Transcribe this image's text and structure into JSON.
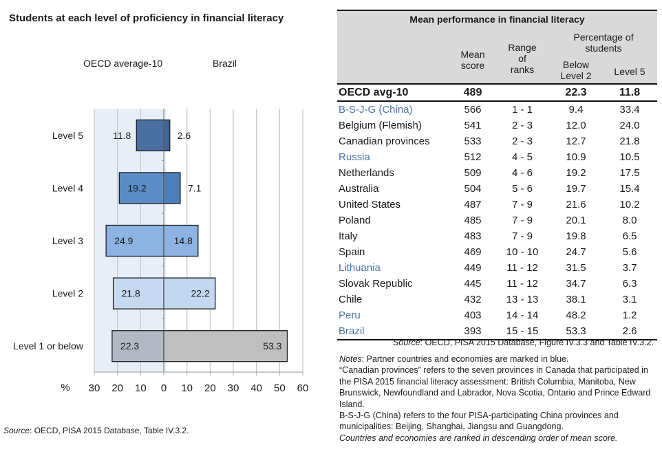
{
  "chart_data": {
    "type": "bar",
    "orientation": "horizontal",
    "diverging": true,
    "title": "Students at each level of proficiency in financial literacy",
    "xlabel": "%",
    "xlim": [
      -30,
      60
    ],
    "xticks": [
      -30,
      -20,
      -10,
      0,
      10,
      20,
      30,
      40,
      50,
      60
    ],
    "xtick_labels": [
      "30",
      "20",
      "10",
      "0",
      "10",
      "20",
      "30",
      "40",
      "50",
      "60"
    ],
    "grid": true,
    "categories": [
      "Level 5",
      "Level 4",
      "Level 3",
      "Level 2",
      "Level 1 or below"
    ],
    "series": [
      {
        "name": "OECD average-10",
        "side": "left",
        "values": [
          11.8,
          19.2,
          24.9,
          21.8,
          22.3
        ],
        "colors": [
          "#4a6fa1",
          "#5b8cc6",
          "#8db3e2",
          "#c5d9f1",
          "#b3b9c4"
        ]
      },
      {
        "name": "Brazil",
        "side": "right",
        "values": [
          2.6,
          7.1,
          14.8,
          22.2,
          53.3
        ],
        "colors": [
          "#3f6598",
          "#4e7fbd",
          "#8db3e2",
          "#c2d7f0",
          "#bfbfbf"
        ]
      }
    ],
    "legend": [
      "OECD average-10",
      "Brazil"
    ],
    "legend_placement": "top",
    "shaded_region": {
      "from": -30,
      "to": 0,
      "color": "#e8eef8"
    },
    "source_prefix": "Source",
    "source_text": ": OECD, PISA 2015 Database, Table IV.3.2."
  },
  "table": {
    "title": "Mean performance in financial literacy",
    "headers": {
      "mean": "Mean score",
      "mean_l1": "Mean",
      "mean_l2": "score",
      "range": "Range of ranks",
      "range_l1": "Range",
      "range_l2": "of",
      "range_l3": "ranks",
      "pct_group": "Percentage of students",
      "pct_l1": "Percentage of",
      "pct_l2": "students",
      "below_l1": "Below",
      "below_l2": "Level 2",
      "level5": "Level 5"
    },
    "oecd_row": {
      "country": "OECD avg-10",
      "mean": "489",
      "range": "",
      "below2": "22.3",
      "level5": "11.8"
    },
    "rows": [
      {
        "country": "B-S-J-G (China)",
        "partner": true,
        "mean": "566",
        "range": "1 - 1",
        "below2": "9.4",
        "level5": "33.4"
      },
      {
        "country": "Belgium (Flemish)",
        "partner": false,
        "mean": "541",
        "range": "2 - 3",
        "below2": "12.0",
        "level5": "24.0"
      },
      {
        "country": "Canadian provinces",
        "partner": false,
        "mean": "533",
        "range": "2 - 3",
        "below2": "12.7",
        "level5": "21.8"
      },
      {
        "country": "Russia",
        "partner": true,
        "mean": "512",
        "range": "4 - 5",
        "below2": "10.9",
        "level5": "10.5"
      },
      {
        "country": "Netherlands",
        "partner": false,
        "mean": "509",
        "range": "4 - 6",
        "below2": "19.2",
        "level5": "17.5"
      },
      {
        "country": "Australia",
        "partner": false,
        "mean": "504",
        "range": "5 - 6",
        "below2": "19.7",
        "level5": "15.4"
      },
      {
        "country": "United States",
        "partner": false,
        "mean": "487",
        "range": "7 - 9",
        "below2": "21.6",
        "level5": "10.2"
      },
      {
        "country": "Poland",
        "partner": false,
        "mean": "485",
        "range": "7 - 9",
        "below2": "20.1",
        "level5": "8.0"
      },
      {
        "country": "Italy",
        "partner": false,
        "mean": "483",
        "range": "7 - 9",
        "below2": "19.8",
        "level5": "6.5"
      },
      {
        "country": "Spain",
        "partner": false,
        "mean": "469",
        "range": "10 - 10",
        "below2": "24.7",
        "level5": "5.6"
      },
      {
        "country": "Lithuania",
        "partner": true,
        "mean": "449",
        "range": "11 - 12",
        "below2": "31.5",
        "level5": "3.7"
      },
      {
        "country": "Slovak Republic",
        "partner": false,
        "mean": "445",
        "range": "11 - 12",
        "below2": "34.7",
        "level5": "6.3"
      },
      {
        "country": "Chile",
        "partner": false,
        "mean": "432",
        "range": "13 - 13",
        "below2": "38.1",
        "level5": "3.1"
      },
      {
        "country": "Peru",
        "partner": true,
        "mean": "403",
        "range": "14 - 14",
        "below2": "48.2",
        "level5": "1.2"
      },
      {
        "country": "Brazil",
        "partner": true,
        "mean": "393",
        "range": "15 - 15",
        "below2": "53.3",
        "level5": "2.6"
      }
    ],
    "partner_color": "#4a74a8",
    "source_prefix": "Source",
    "source_text": ": OECD, PISA 2015 Database, Figure IV.3.3 and Table IV.3.2."
  },
  "notes": {
    "prefix": "Notes",
    "line1": ": Partner countries and economies are marked in blue.",
    "line2": "“Canadian provinces” refers to the seven provinces in Canada that participated in the PISA 2015 financial literacy assessment: British Columbia, Manitoba, New Brunswick, Newfoundland and Labrador, Nova Scotia, Ontario and Prince Edward Island.",
    "line3": "B-S-J-G (China) refers to the four PISA-participating China provinces and municipalities: Beijing, Shanghai, Jiangsu and Guangdong.",
    "line4": "Countries and economies are ranked in descending order of mean score."
  }
}
